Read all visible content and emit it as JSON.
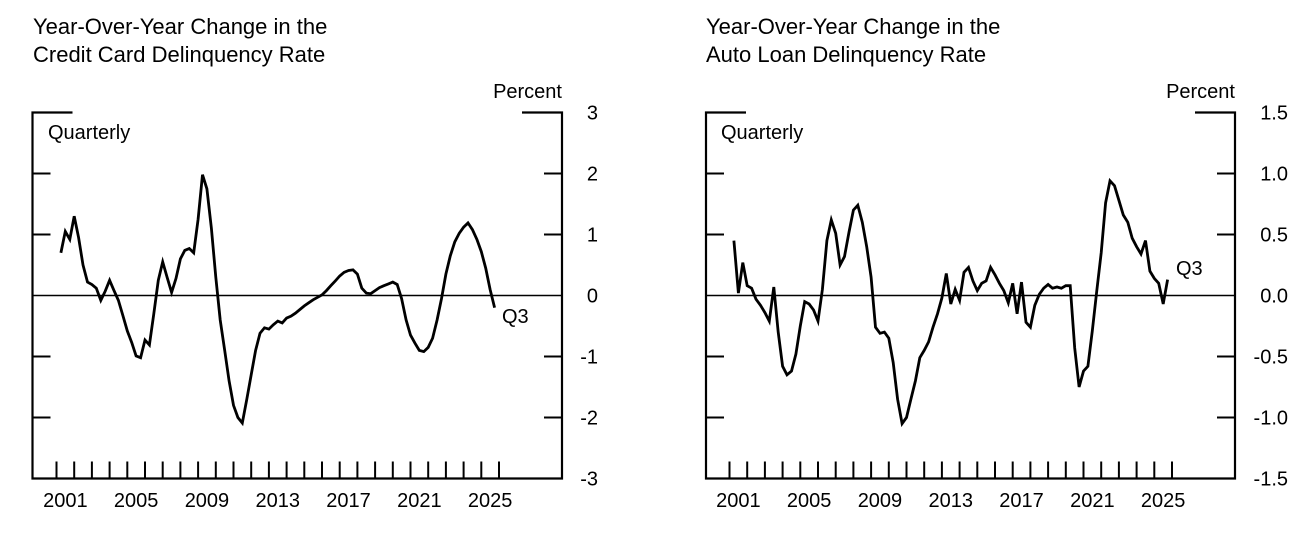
{
  "page": {
    "background_color": "#ffffff",
    "text_color": "#000000",
    "line_color": "#000000"
  },
  "chart_data": [
    {
      "type": "line",
      "title_line1": "Year-Over-Year Change in the",
      "title_line2": "Credit Card Delinquency Rate",
      "unit_label": "Percent",
      "frequency_label": "Quarterly",
      "end_point_label": "Q3",
      "x_start": "2001 Q1",
      "x_end": "2025 Q3",
      "x_tick_year_first": 2001,
      "x_tick_year_last": 2026,
      "x_tick_label_years": [
        "2001",
        "2005",
        "2009",
        "2013",
        "2017",
        "2021",
        "2025"
      ],
      "ylim": [
        -3,
        3
      ],
      "y_tick_values": [
        3,
        2,
        1,
        0,
        -1,
        -2,
        -3
      ],
      "y_tick_labels": [
        "3",
        "2",
        "1",
        "0",
        "-1",
        "-2",
        "-3"
      ],
      "zero_line": true,
      "grid": false,
      "values": [
        0.7,
        1.05,
        0.92,
        1.3,
        0.95,
        0.5,
        0.22,
        0.18,
        0.12,
        -0.08,
        0.07,
        0.25,
        0.08,
        -0.08,
        -0.33,
        -0.58,
        -0.77,
        -0.99,
        -1.02,
        -0.73,
        -0.81,
        -0.3,
        0.25,
        0.55,
        0.3,
        0.05,
        0.28,
        0.6,
        0.74,
        0.77,
        0.7,
        1.25,
        1.98,
        1.75,
        1.1,
        0.3,
        -0.4,
        -0.9,
        -1.4,
        -1.8,
        -2.0,
        -2.09,
        -1.7,
        -1.3,
        -0.9,
        -0.62,
        -0.53,
        -0.55,
        -0.48,
        -0.42,
        -0.45,
        -0.37,
        -0.34,
        -0.29,
        -0.23,
        -0.17,
        -0.12,
        -0.07,
        -0.03,
        0.01,
        0.08,
        0.16,
        0.24,
        0.32,
        0.38,
        0.41,
        0.42,
        0.35,
        0.12,
        0.04,
        0.03,
        0.08,
        0.13,
        0.16,
        0.19,
        0.22,
        0.18,
        -0.05,
        -0.4,
        -0.65,
        -0.78,
        -0.9,
        -0.92,
        -0.85,
        -0.7,
        -0.4,
        -0.05,
        0.35,
        0.65,
        0.88,
        1.02,
        1.12,
        1.19,
        1.08,
        0.92,
        0.72,
        0.45,
        0.1,
        -0.2
      ]
    },
    {
      "type": "line",
      "title_line1": "Year-Over-Year Change in the",
      "title_line2": "Auto Loan Delinquency Rate",
      "unit_label": "Percent",
      "frequency_label": "Quarterly",
      "end_point_label": "Q3",
      "x_start": "2001 Q1",
      "x_end": "2025 Q3",
      "x_tick_year_first": 2001,
      "x_tick_year_last": 2026,
      "x_tick_label_years": [
        "2001",
        "2005",
        "2009",
        "2013",
        "2017",
        "2021",
        "2025"
      ],
      "ylim": [
        -1.5,
        1.5
      ],
      "y_tick_values": [
        1.5,
        1.0,
        0.5,
        0,
        -0.5,
        -1.0,
        -1.5
      ],
      "y_tick_labels": [
        "1.5",
        "1.0",
        "0.5",
        "0.0",
        "-0.5",
        "-1.0",
        "-1.5"
      ],
      "zero_line": true,
      "grid": false,
      "values": [
        0.45,
        0.02,
        0.27,
        0.08,
        0.06,
        -0.03,
        -0.08,
        -0.14,
        -0.21,
        0.07,
        -0.3,
        -0.58,
        -0.65,
        -0.62,
        -0.48,
        -0.25,
        -0.05,
        -0.07,
        -0.12,
        -0.21,
        0.05,
        0.45,
        0.62,
        0.51,
        0.25,
        0.32,
        0.52,
        0.7,
        0.74,
        0.6,
        0.4,
        0.15,
        -0.26,
        -0.31,
        -0.3,
        -0.35,
        -0.55,
        -0.85,
        -1.05,
        -1.0,
        -0.85,
        -0.7,
        -0.51,
        -0.45,
        -0.38,
        -0.26,
        -0.15,
        -0.02,
        0.18,
        -0.07,
        0.05,
        -0.04,
        0.19,
        0.23,
        0.12,
        0.04,
        0.1,
        0.12,
        0.23,
        0.17,
        0.1,
        0.04,
        -0.06,
        0.1,
        -0.15,
        0.11,
        -0.22,
        -0.26,
        -0.08,
        0.01,
        0.06,
        0.09,
        0.06,
        0.07,
        0.06,
        0.08,
        0.08,
        -0.43,
        -0.75,
        -0.62,
        -0.58,
        -0.29,
        0.04,
        0.35,
        0.76,
        0.94,
        0.9,
        0.78,
        0.66,
        0.6,
        0.47,
        0.4,
        0.34,
        0.45,
        0.2,
        0.14,
        0.1,
        -0.07,
        0.13
      ]
    }
  ]
}
